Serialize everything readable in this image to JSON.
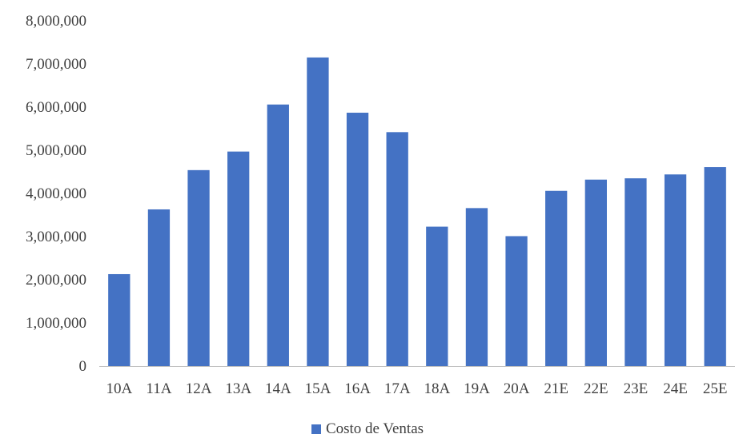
{
  "chart_data": {
    "type": "bar",
    "categories": [
      "10A",
      "11A",
      "12A",
      "13A",
      "14A",
      "15A",
      "16A",
      "17A",
      "18A",
      "19A",
      "20A",
      "21E",
      "22E",
      "23E",
      "24E",
      "25E"
    ],
    "series": [
      {
        "name": "Costo de Ventas",
        "values": [
          2130000,
          3630000,
          4540000,
          4970000,
          6060000,
          7150000,
          5870000,
          5420000,
          3230000,
          3660000,
          3010000,
          4060000,
          4320000,
          4350000,
          4440000,
          4610000
        ],
        "color": "#4472C4"
      }
    ],
    "yticks": [
      "0",
      "1,000,000",
      "2,000,000",
      "3,000,000",
      "4,000,000",
      "5,000,000",
      "6,000,000",
      "7,000,000",
      "8,000,000"
    ],
    "ylim": [
      0,
      8000000
    ],
    "grid": false,
    "legend_position": "bottom-center"
  }
}
